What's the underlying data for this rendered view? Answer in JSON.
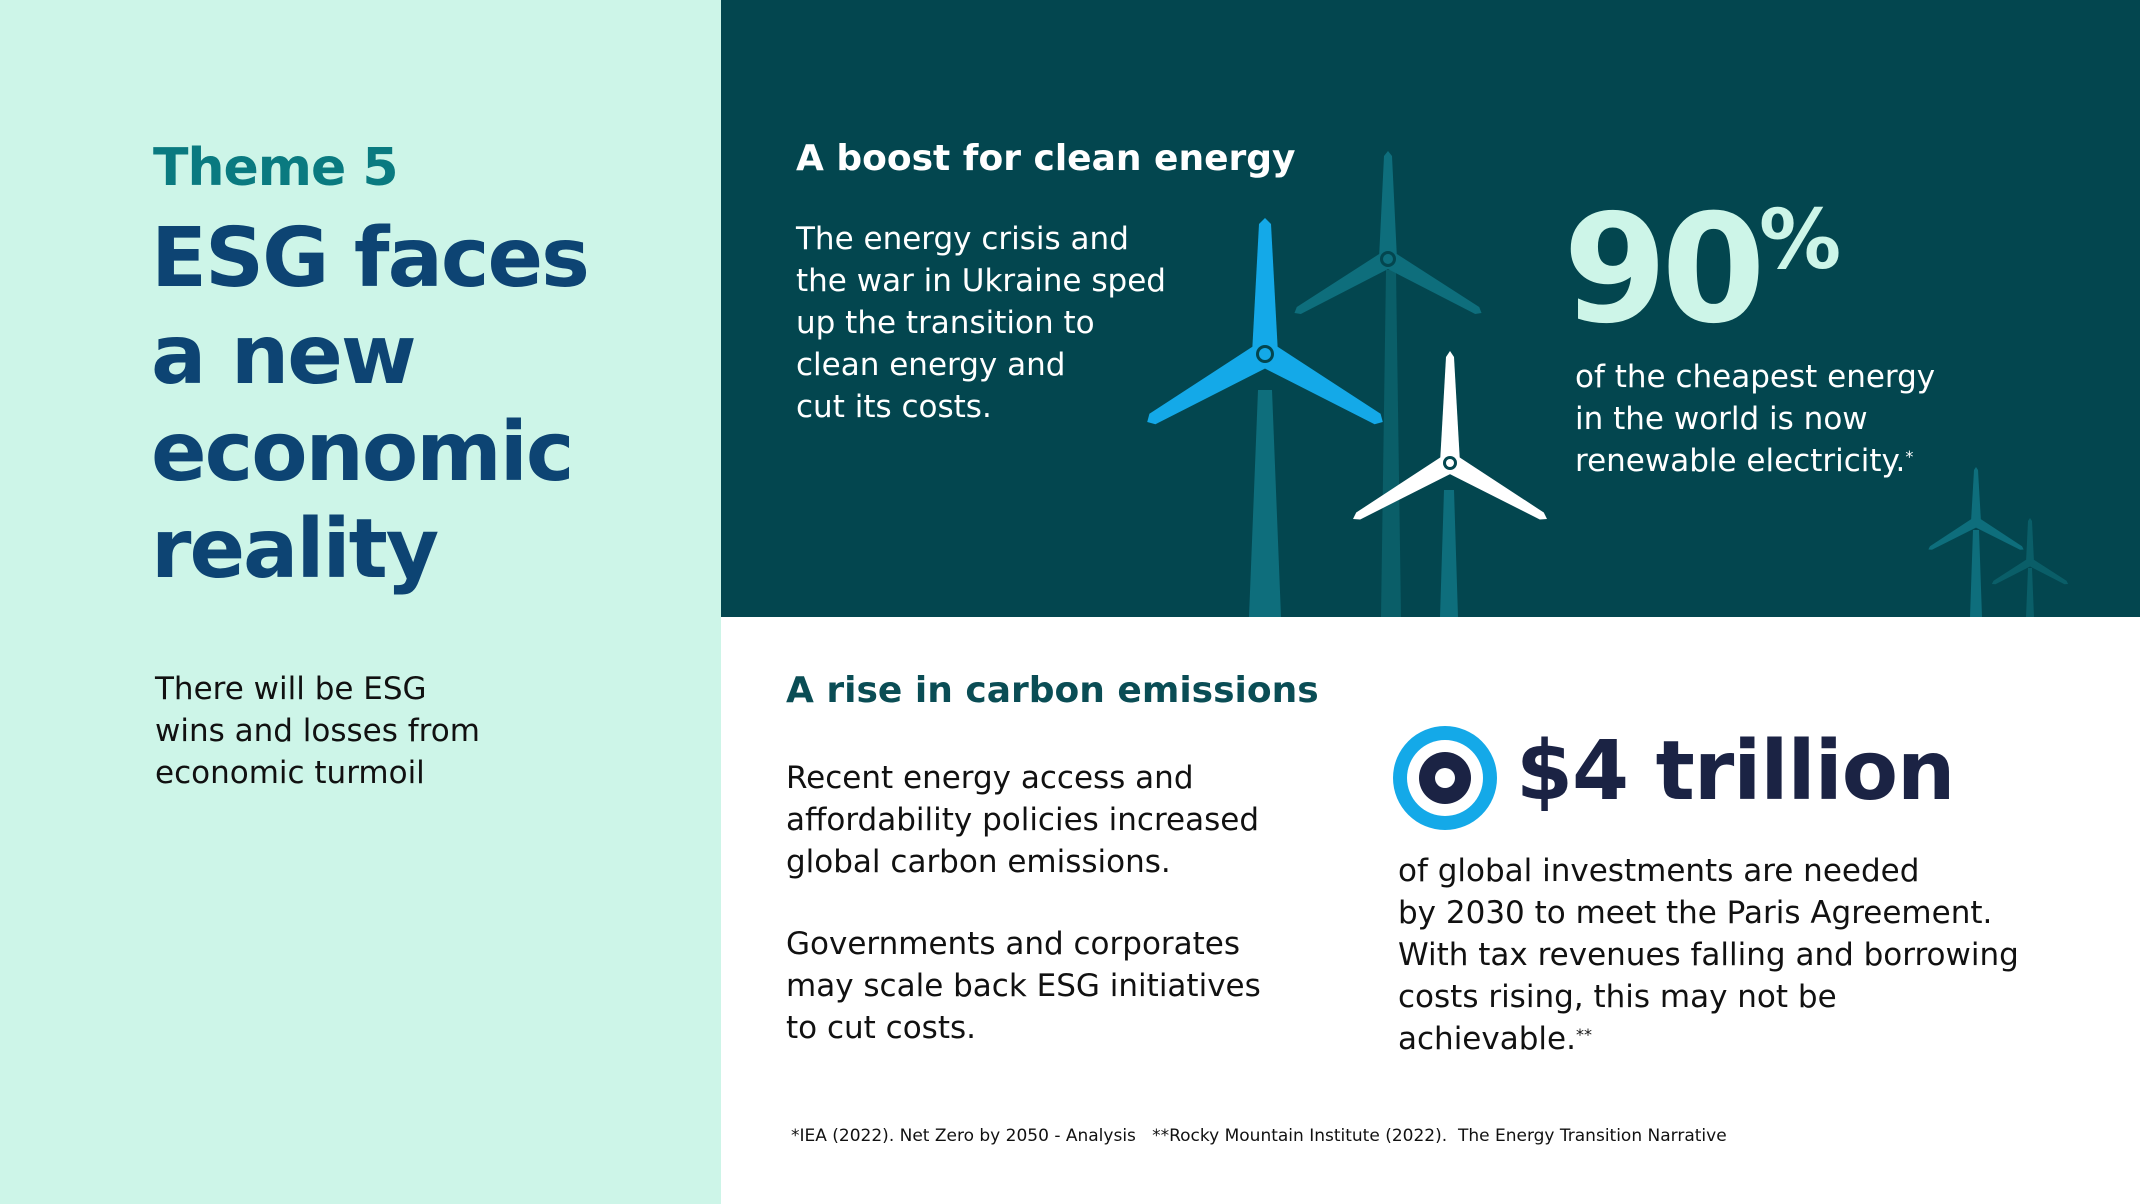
{
  "theme": {
    "label": "Theme 5"
  },
  "title": {
    "lines": [
      "ESG faces",
      "a new",
      "economic",
      "reality"
    ]
  },
  "intro": {
    "lines": [
      "There will be ESG",
      "wins and losses from",
      "economic turmoil"
    ]
  },
  "clean_energy": {
    "heading": "A boost for clean energy",
    "body_lines": [
      "The energy crisis and",
      "the war in Ukraine sped",
      "up the transition to",
      "clean energy and",
      "cut its costs."
    ],
    "stat_value": "90",
    "stat_unit": "%",
    "stat_lines": [
      "of the cheapest energy",
      "in the world is now",
      "renewable electricity."
    ],
    "stat_mark": "*"
  },
  "carbon": {
    "heading": "A rise in carbon emissions",
    "paragraph1_lines": [
      "Recent energy access and",
      "affordability policies increased",
      "global carbon emissions."
    ],
    "paragraph2_lines": [
      "Governments and corporates",
      "may scale back ESG initiatives",
      "to cut costs."
    ],
    "stat_value": "$4 trillion",
    "stat_lines": [
      "of global investments are needed",
      "by 2030 to meet the Paris Agreement.",
      "With tax revenues falling and borrowing",
      "costs rising, this may not be achievable."
    ],
    "stat_mark": "**"
  },
  "footnote": {
    "text": "*IEA (2022). Net Zero by 2050 - Analysis   **Rocky Mountain Institute (2022).  The Energy Transition Narrative"
  },
  "colors": {
    "mint": "#cdf5e8",
    "dark_teal": "#03464f",
    "navy": "#0d4473",
    "teal_text": "#0a7a80",
    "sky_blue": "#14a9e8",
    "turbine_teal": "#0e6e7c"
  },
  "icons": [
    "wind-turbine-icon",
    "target-icon"
  ]
}
